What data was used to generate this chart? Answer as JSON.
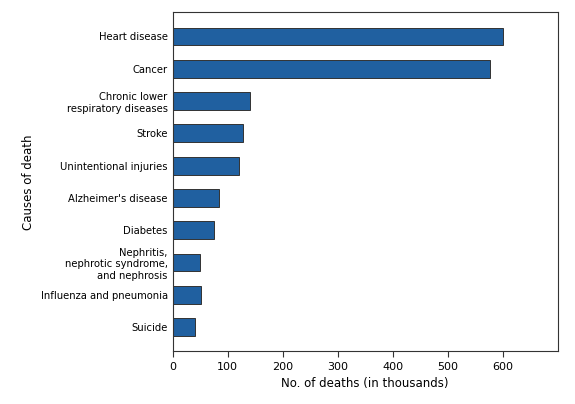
{
  "categories": [
    "Suicide",
    "Influenza and pneumonia",
    "Nephritis,\nnephrotic syndrome,\nand nephrosis",
    "Diabetes",
    "Alzheimer's disease",
    "Unintentional injuries",
    "Stroke",
    "Chronic lower\nrespiratory diseases",
    "Cancer",
    "Heart disease"
  ],
  "values": [
    41,
    51,
    50,
    75,
    84,
    120,
    129,
    140,
    576,
    600
  ],
  "bar_color": "#2060A0",
  "bar_edgecolor": "#333333",
  "xlabel": "No. of deaths (in thousands)",
  "ylabel": "Causes of death",
  "xlim": [
    0,
    700
  ],
  "xticks": [
    0,
    100,
    200,
    300,
    400,
    500,
    600
  ],
  "background_color": "#FFFFFF",
  "bar_linewidth": 0.7,
  "bar_height": 0.55,
  "figsize": [
    5.75,
    4.04
  ],
  "dpi": 100,
  "ytick_fontsize": 7.2,
  "xtick_fontsize": 8,
  "label_fontsize": 8.5
}
